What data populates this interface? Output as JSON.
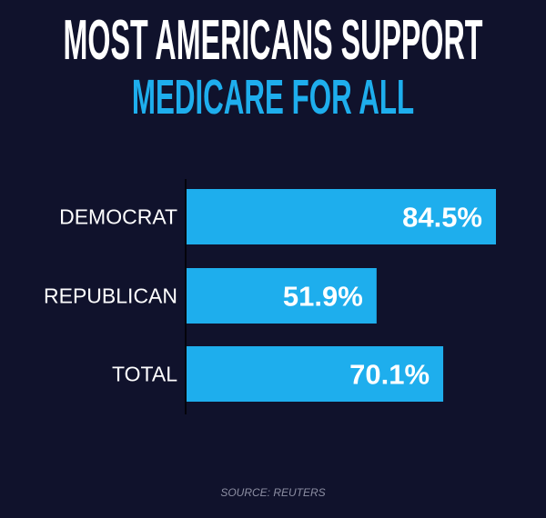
{
  "chart_data": {
    "type": "bar",
    "orientation": "horizontal",
    "title_line1": "MOST AMERICANS SUPPORT",
    "title_line2": "MEDICARE FOR ALL",
    "categories": [
      "DEMOCRAT",
      "REPUBLICAN",
      "TOTAL"
    ],
    "values": [
      84.5,
      51.9,
      70.1
    ],
    "data_labels": [
      "84.5%",
      "51.9%",
      "70.1%"
    ],
    "xlim": [
      0,
      100
    ],
    "grid": false,
    "source": "SOURCE: REUTERS",
    "colors": {
      "background": "#10122c",
      "bar": "#1eaeed",
      "title_accent": "#1eaeed",
      "text": "#ffffff"
    }
  }
}
